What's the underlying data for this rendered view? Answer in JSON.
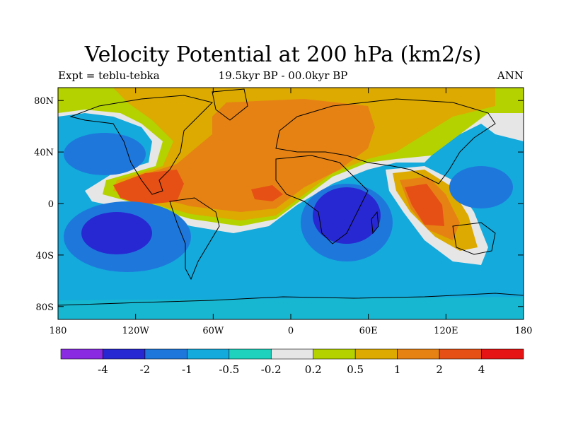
{
  "title": "Velocity Potential at 200 hPa (km2/s)",
  "subtitle_left": "Expt = teblu-tebka",
  "subtitle_center": "19.5kyr BP - 00.0kyr BP",
  "subtitle_right": "ANN",
  "map": {
    "lon_range": [
      -180,
      180
    ],
    "lat_range": [
      -90,
      90
    ],
    "lat_ticks": [
      {
        "value": 80,
        "label": "80N"
      },
      {
        "value": 40,
        "label": "40N"
      },
      {
        "value": 0,
        "label": "0"
      },
      {
        "value": -40,
        "label": "40S"
      },
      {
        "value": -80,
        "label": "80S"
      }
    ],
    "lon_ticks": [
      {
        "value": -180,
        "label": "180"
      },
      {
        "value": -120,
        "label": "120W"
      },
      {
        "value": -60,
        "label": "60W"
      },
      {
        "value": 0,
        "label": "0"
      },
      {
        "value": 60,
        "label": "60E"
      },
      {
        "value": 120,
        "label": "120E"
      },
      {
        "value": 180,
        "label": "180"
      }
    ]
  },
  "colorbar": {
    "colors": [
      "#8a2be2",
      "#2828d2",
      "#1e78dc",
      "#14aadc",
      "#1ed2be",
      "#e6e6e6",
      "#b4d200",
      "#dcaa00",
      "#e68214",
      "#e65014",
      "#e61414"
    ],
    "labels": [
      "-4",
      "-2",
      "-1",
      "-0.5",
      "-0.2",
      "0.2",
      "0.5",
      "1",
      "2",
      "4"
    ]
  }
}
